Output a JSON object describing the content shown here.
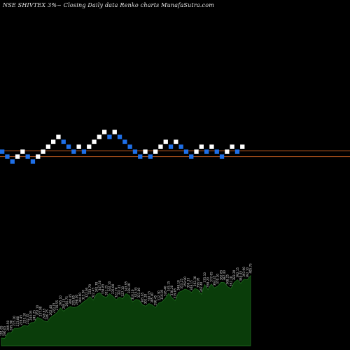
{
  "title": "NSE SHIVTEX 3%~  Closing Daily data  Renko  charts MunafaSutra.com",
  "colors": {
    "background": "#000000",
    "up_brick": "#ffffff",
    "down_brick": "#1e6fe8",
    "reference_line": "#b5561d",
    "price_area": "#0a3d0a",
    "price_area_edge": "#1f6b1f",
    "label": "#d8d8d8"
  },
  "chart_data": [
    {
      "type": "renko",
      "brick_pct": 3,
      "bricks": [
        {
          "dir": "down",
          "level": 0
        },
        {
          "dir": "down",
          "level": -1
        },
        {
          "dir": "down",
          "level": -2
        },
        {
          "dir": "up",
          "level": -1
        },
        {
          "dir": "up",
          "level": 0
        },
        {
          "dir": "down",
          "level": -1
        },
        {
          "dir": "down",
          "level": -2
        },
        {
          "dir": "up",
          "level": -1
        },
        {
          "dir": "up",
          "level": 0
        },
        {
          "dir": "up",
          "level": 1
        },
        {
          "dir": "up",
          "level": 2
        },
        {
          "dir": "up",
          "level": 3
        },
        {
          "dir": "down",
          "level": 2
        },
        {
          "dir": "down",
          "level": 1
        },
        {
          "dir": "down",
          "level": 0
        },
        {
          "dir": "up",
          "level": 1
        },
        {
          "dir": "down",
          "level": 0
        },
        {
          "dir": "up",
          "level": 1
        },
        {
          "dir": "up",
          "level": 2
        },
        {
          "dir": "up",
          "level": 3
        },
        {
          "dir": "up",
          "level": 4
        },
        {
          "dir": "down",
          "level": 3
        },
        {
          "dir": "up",
          "level": 4
        },
        {
          "dir": "down",
          "level": 3
        },
        {
          "dir": "down",
          "level": 2
        },
        {
          "dir": "down",
          "level": 1
        },
        {
          "dir": "down",
          "level": 0
        },
        {
          "dir": "down",
          "level": -1
        },
        {
          "dir": "up",
          "level": 0
        },
        {
          "dir": "down",
          "level": -1
        },
        {
          "dir": "up",
          "level": 0
        },
        {
          "dir": "up",
          "level": 1
        },
        {
          "dir": "up",
          "level": 2
        },
        {
          "dir": "down",
          "level": 1
        },
        {
          "dir": "up",
          "level": 2
        },
        {
          "dir": "down",
          "level": 1
        },
        {
          "dir": "down",
          "level": 0
        },
        {
          "dir": "down",
          "level": -1
        },
        {
          "dir": "up",
          "level": 0
        },
        {
          "dir": "up",
          "level": 1
        },
        {
          "dir": "down",
          "level": 0
        },
        {
          "dir": "up",
          "level": 1
        },
        {
          "dir": "down",
          "level": 0
        },
        {
          "dir": "down",
          "level": -1
        },
        {
          "dir": "up",
          "level": 0
        },
        {
          "dir": "up",
          "level": 1
        },
        {
          "dir": "down",
          "level": 0
        },
        {
          "dir": "up",
          "level": 1
        }
      ],
      "reference_lines": [
        {
          "level": 0.15
        },
        {
          "level": -1
        }
      ]
    },
    {
      "type": "area",
      "values": [
        191,
        190,
        209,
        210,
        225,
        224,
        228,
        235,
        232,
        244,
        245,
        262,
        258,
        250,
        247,
        262,
        270,
        279,
        295,
        284,
        293,
        300,
        296,
        298,
        305,
        315,
        323,
        334,
        322,
        342,
        347,
        335,
        331,
        344,
        335,
        323,
        332,
        327,
        344,
        338,
        316,
        324,
        322,
        306,
        301,
        310,
        305,
        296,
        312,
        316,
        328,
        345,
        330,
        320,
        348,
        353,
        360,
        356,
        348,
        362,
        357,
        342,
        375,
        358,
        377,
        364,
        370,
        383,
        382,
        368,
        362,
        383,
        392,
        380,
        394,
        392,
        406
      ],
      "labels": [
        "191.05",
        "190.05",
        "209.50",
        "209.90",
        "225.20",
        "223.80",
        "228.45",
        "235.10",
        "232.35",
        "244.05",
        "245.25",
        "262.10",
        "257.90",
        "249.65",
        "246.75",
        "262.40",
        "270.15",
        "278.55",
        "295.10",
        "284.15",
        "292.75",
        "300.45",
        "295.85",
        "298.30",
        "304.60",
        "315.30",
        "322.95",
        "333.70",
        "322.45",
        "341.70",
        "347.30",
        "334.85",
        "331.25",
        "344.10",
        "335.00",
        "322.70",
        "332.45",
        "327.10",
        "343.95",
        "338.40",
        "316.10",
        "323.55",
        "321.80",
        "305.65",
        "301.20",
        "310.15",
        "305.40",
        "296.45",
        "312.30",
        "316.05",
        "328.40",
        "345.15",
        "330.20",
        "319.85",
        "348.10",
        "353.25",
        "359.90",
        "356.35",
        "348.15",
        "362.30",
        "356.95",
        "342.40",
        "375.10",
        "358.20",
        "377.05",
        "364.45",
        "370.10",
        "382.85",
        "382.40",
        "368.25",
        "362.10",
        "383.20",
        "392.15",
        "380.45",
        "393.90",
        "392.10",
        "405.75"
      ]
    }
  ]
}
